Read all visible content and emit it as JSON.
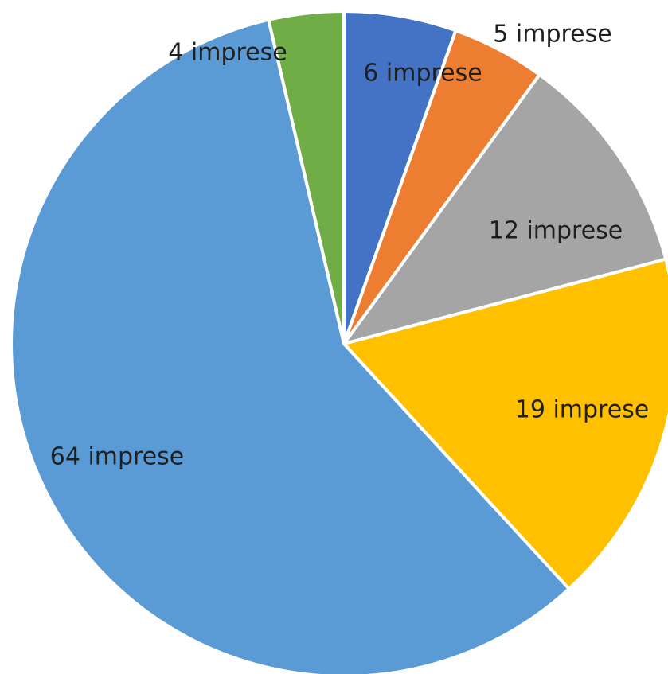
{
  "chart_data": {
    "type": "pie",
    "title": "",
    "legend": "none",
    "start_angle_deg": 0,
    "direction": "clockwise",
    "slices": [
      {
        "value": 6,
        "label": "6 imprese",
        "color": "#4472C4"
      },
      {
        "value": 5,
        "label": "5 imprese",
        "color": "#ED7D31"
      },
      {
        "value": 12,
        "label": "12 imprese",
        "color": "#A5A5A5"
      },
      {
        "value": 19,
        "label": "19 imprese",
        "color": "#FFC000"
      },
      {
        "value": 64,
        "label": "64 imprese",
        "color": "#5B9BD5"
      },
      {
        "value": 4,
        "label": "4 imprese",
        "color": "#70AD47"
      }
    ]
  }
}
